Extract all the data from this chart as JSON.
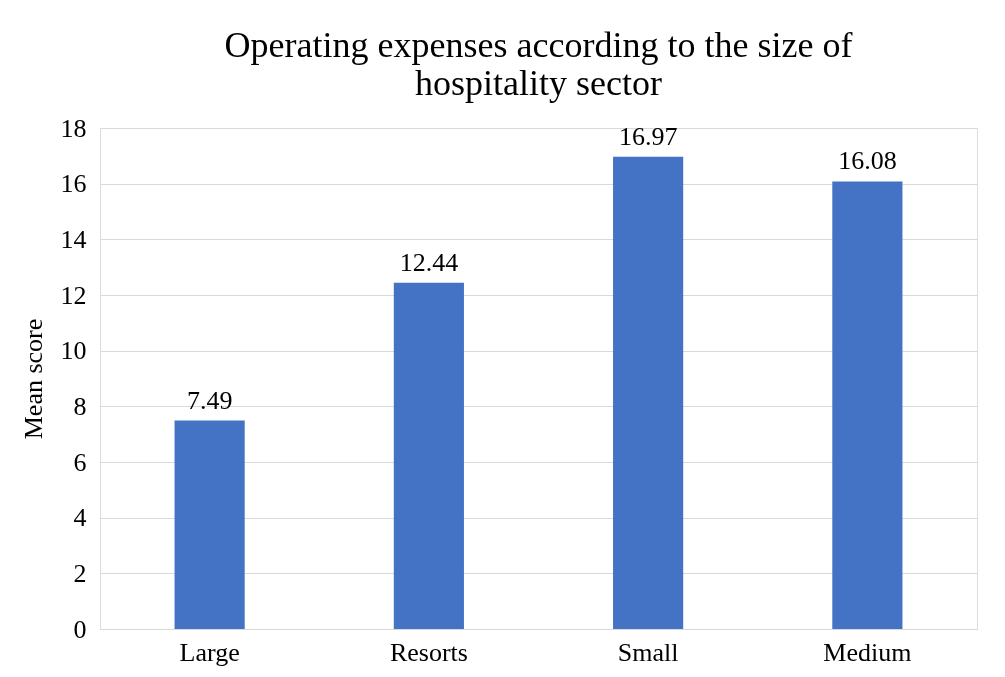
{
  "chart_data": {
    "type": "bar",
    "title": "Operating expenses according to the size of hospitality sector",
    "ylabel": "Mean score",
    "categories": [
      "Large",
      "Resorts",
      "Small",
      "Medium"
    ],
    "values": [
      7.49,
      12.44,
      16.97,
      16.08
    ],
    "color": "#4472c4",
    "ylim": [
      0,
      18
    ],
    "yticks": [
      0,
      2,
      4,
      6,
      8,
      10,
      12,
      14,
      16,
      18
    ],
    "grid": "y",
    "data_labels": true
  }
}
